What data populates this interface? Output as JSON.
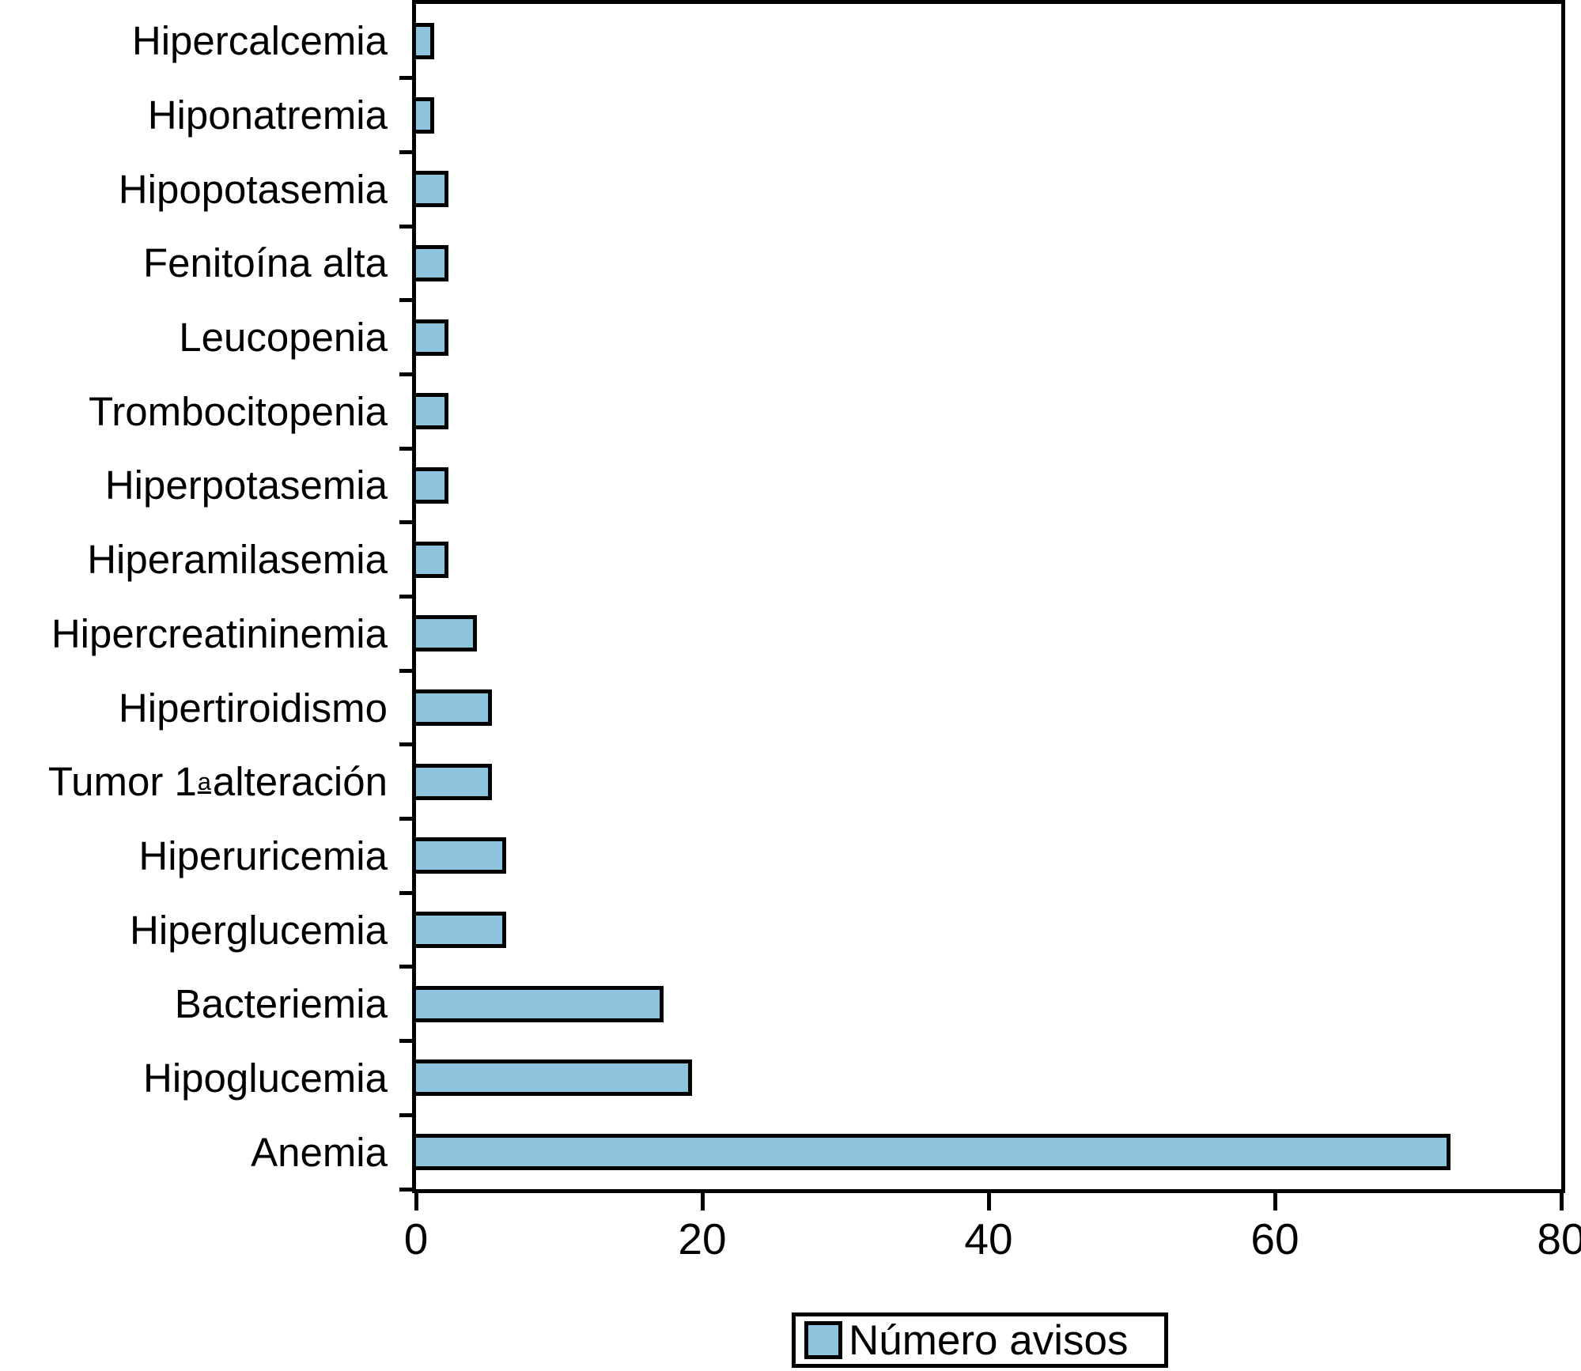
{
  "figure": {
    "background": "#ffffff",
    "bar_fill": "#8EC4DE",
    "bar_border": "#000000",
    "axis_color": "#000000",
    "text_color": "#000000"
  },
  "chart_data": {
    "type": "bar",
    "orientation": "horizontal",
    "title": "",
    "xlabel": "",
    "ylabel": "",
    "xlim": [
      0,
      80
    ],
    "x_ticks": [
      0,
      20,
      40,
      60,
      80
    ],
    "grid": false,
    "frame": true,
    "legend_label": "Número avisos",
    "legend_position": "bottom",
    "categories": [
      "Hipercalcemia",
      "Hiponatremia",
      "Hipopotasemia",
      "Fenitoína alta",
      "Leucopenia",
      "Trombocitopenia",
      "Hiperpotasemia",
      "Hiperamilasemia",
      "Hipercreatininemia",
      "Hipertiroidismo",
      "Tumor 1ª alteración",
      "Hiperuricemia",
      "Hiperglucemia",
      "Bacteriemia",
      "Hipoglucemia",
      "Anemia"
    ],
    "series": [
      {
        "name": "Número avisos",
        "values": [
          1,
          1,
          2,
          2,
          2,
          2,
          2,
          2,
          4,
          5,
          5,
          6,
          6,
          17,
          19,
          72
        ]
      }
    ]
  }
}
